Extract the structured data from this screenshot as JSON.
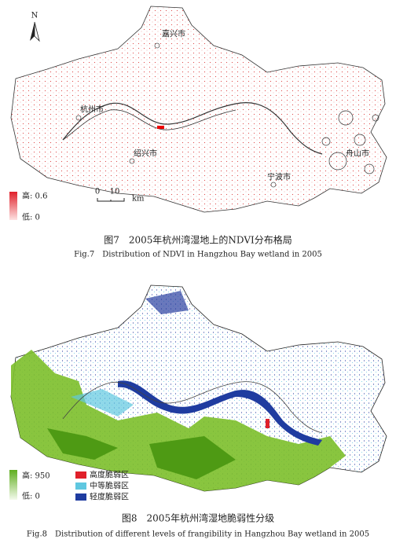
{
  "figure_7": {
    "north": "N",
    "cities": [
      "嘉兴市",
      "杭州市",
      "绍兴市",
      "宁波市",
      "舟山市"
    ],
    "legend": {
      "high": "高: 0.6",
      "low": "低: 0"
    },
    "scale": {
      "start": "0",
      "end": "10",
      "unit": "km"
    },
    "caption_cn": "图7　2005年杭州湾湿地上的NDVI分布格局",
    "caption_en": "Fig.7　Distribution of NDVI in Hangzhou Bay wetland in 2005"
  },
  "figure_8": {
    "legend": {
      "high": "高: 950",
      "low": "低: 0",
      "classes": [
        "高度脆弱区",
        "中等脆弱区",
        "轻度脆弱区"
      ]
    },
    "caption_cn": "图8　2005年杭州湾湿地脆弱性分级",
    "caption_en": "Fig.8　Distribution of different levels of frangibility in Hangzhou Bay wetland in 2005"
  }
}
